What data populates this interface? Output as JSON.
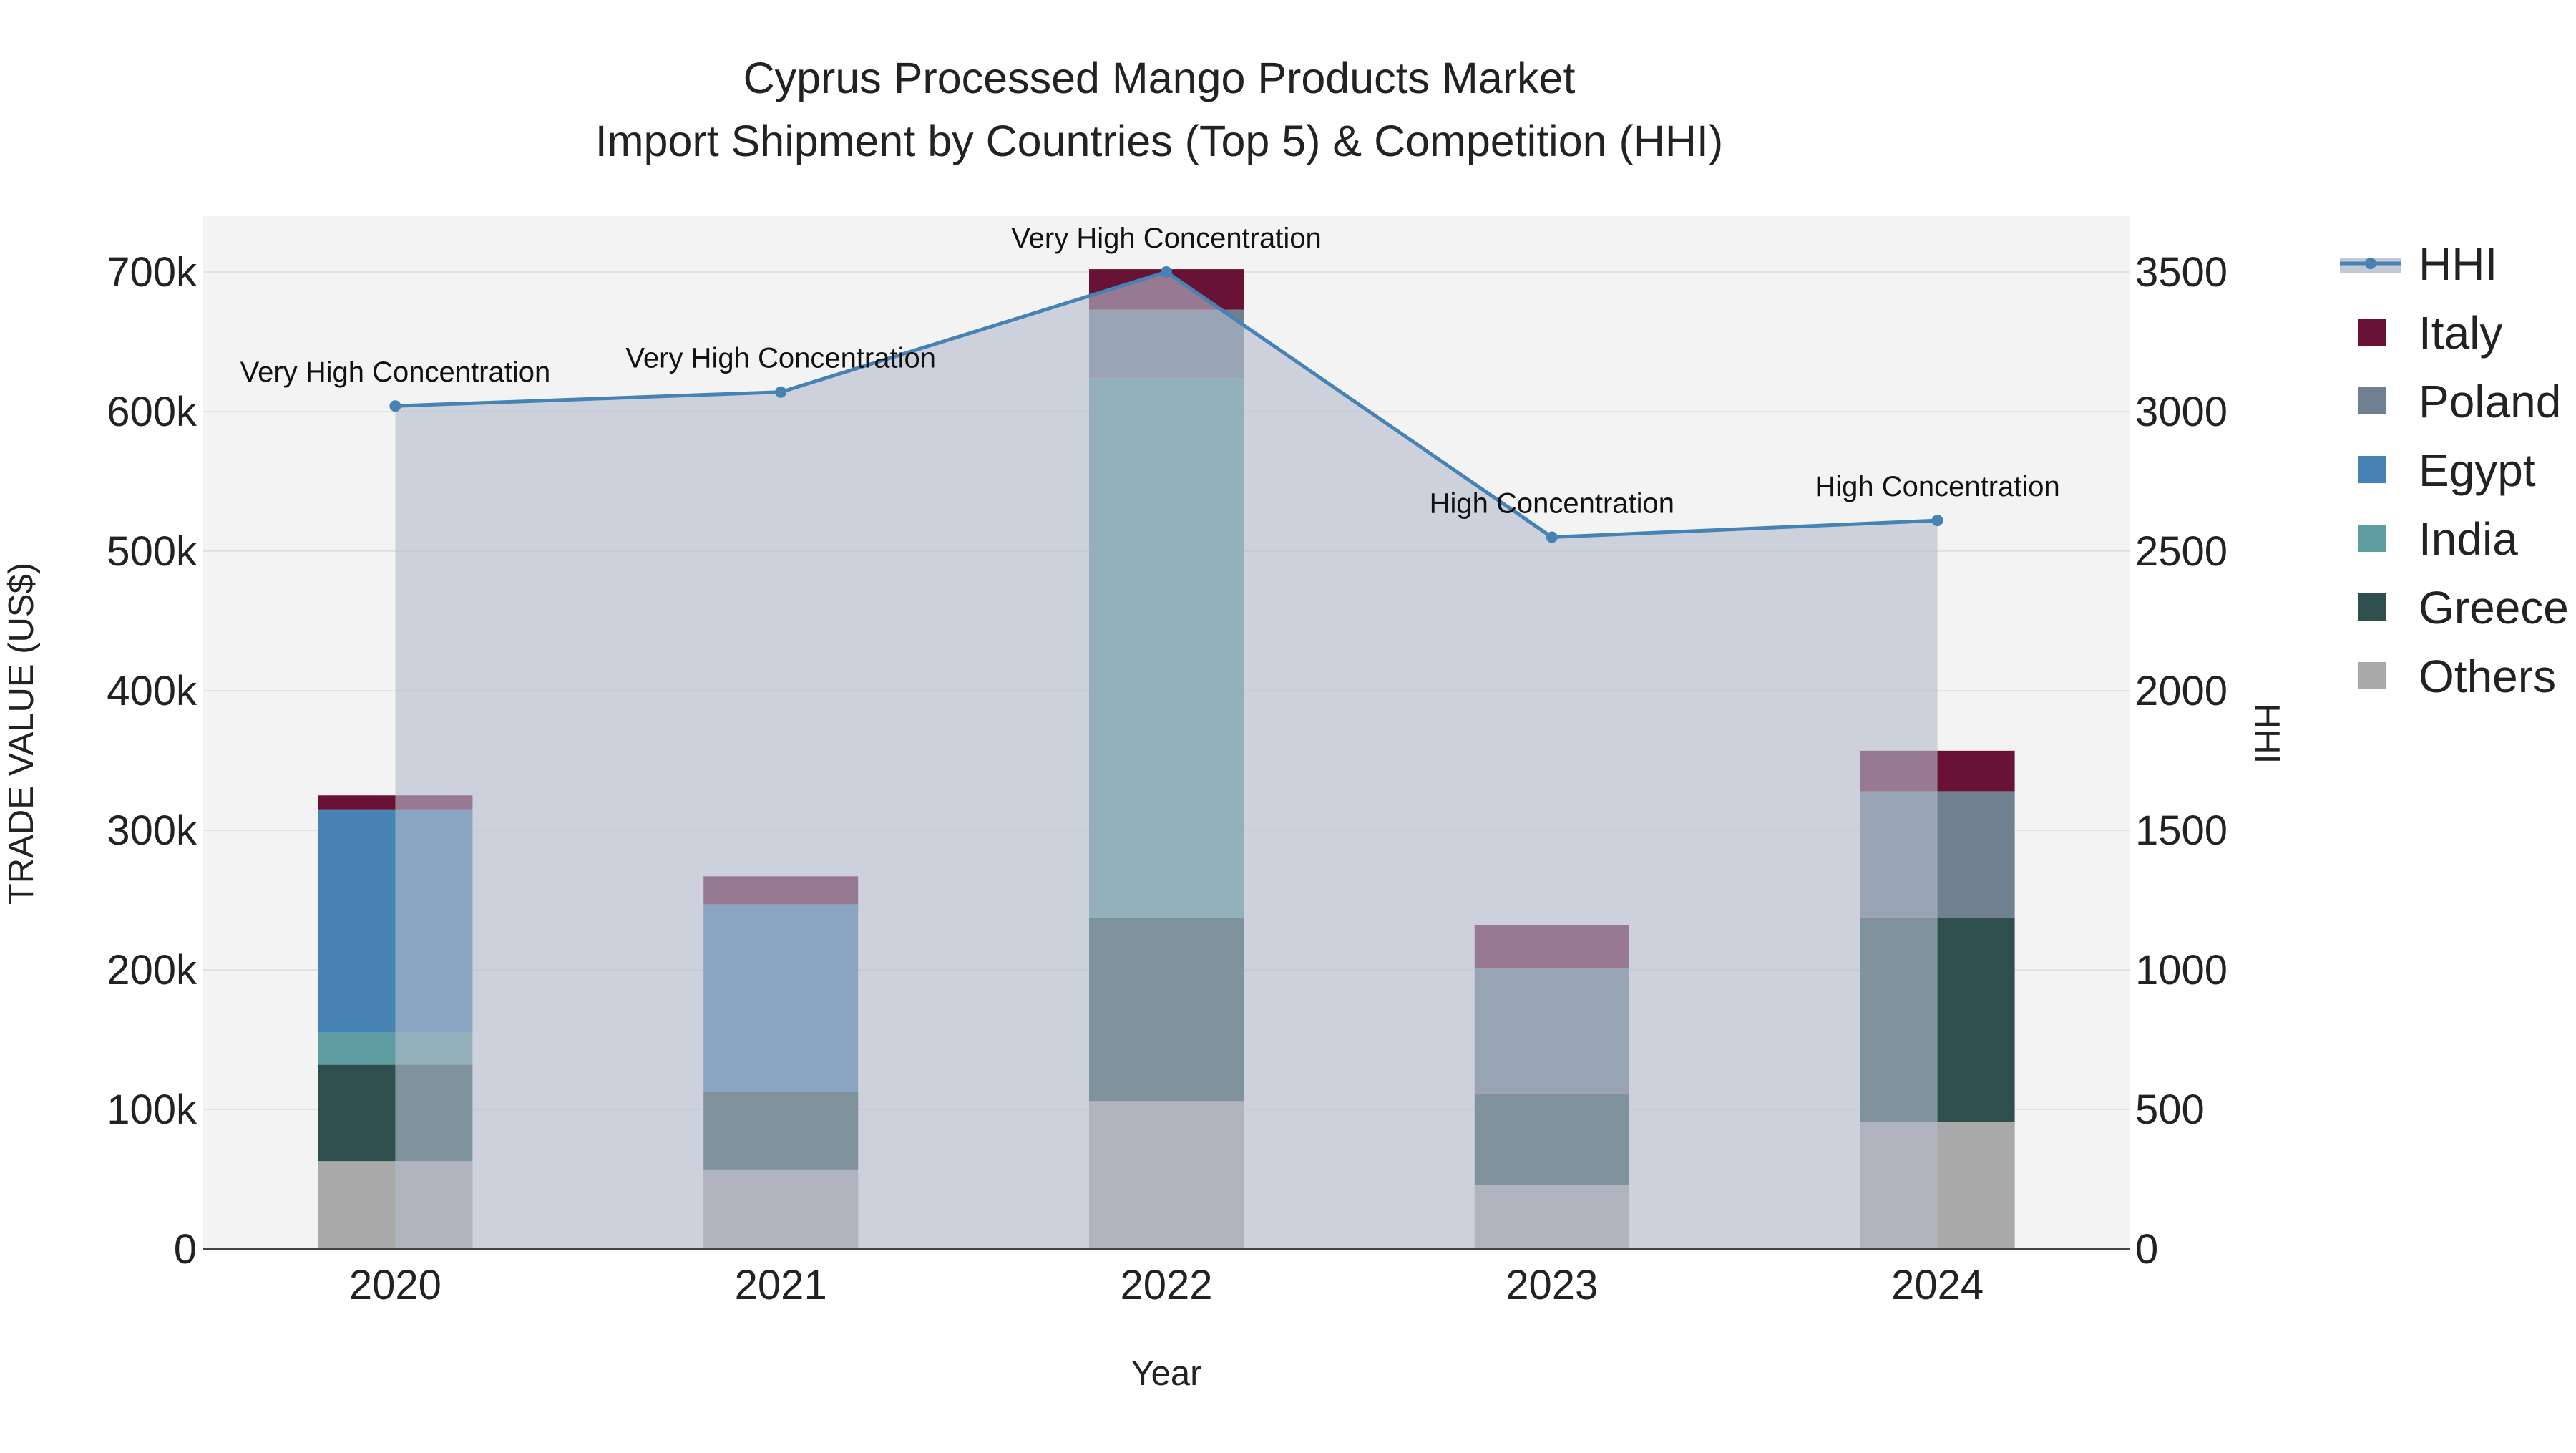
{
  "chart_data": {
    "type": "bar",
    "title_line1": "Cyprus Processed Mango Products Market",
    "title_line2": "Import Shipment by Countries (Top 5) & Competition (HHI)",
    "xlabel": "Year",
    "ylabel": "TRADE VALUE (US$)",
    "y2label": "HHI",
    "categories": [
      "2020",
      "2021",
      "2022",
      "2023",
      "2024"
    ],
    "ylim": [
      0,
      740000
    ],
    "y2lim": [
      0,
      3700
    ],
    "y_ticks": [
      0,
      100000,
      200000,
      300000,
      400000,
      500000,
      600000,
      700000
    ],
    "y_tick_labels": [
      "0",
      "100k",
      "200k",
      "300k",
      "400k",
      "500k",
      "600k",
      "700k"
    ],
    "y2_ticks": [
      0,
      500,
      1000,
      1500,
      2000,
      2500,
      3000,
      3500
    ],
    "y2_tick_labels": [
      "0",
      "500",
      "1000",
      "1500",
      "2000",
      "2500",
      "3000",
      "3500"
    ],
    "series": [
      {
        "name": "Others",
        "color": "#a9a9a9",
        "values": [
          63000,
          57000,
          106000,
          46000,
          91000
        ]
      },
      {
        "name": "Greece",
        "color": "#2f4f4f",
        "values": [
          69000,
          56000,
          131000,
          65000,
          146000
        ]
      },
      {
        "name": "India",
        "color": "#5f9ea0",
        "values": [
          23000,
          0,
          387000,
          0,
          0
        ]
      },
      {
        "name": "Egypt",
        "color": "#4682b4",
        "values": [
          160000,
          134000,
          0,
          0,
          0
        ]
      },
      {
        "name": "Poland",
        "color": "#708090",
        "values": [
          0,
          0,
          49000,
          90000,
          91000
        ]
      },
      {
        "name": "Italy",
        "color": "#6a1136",
        "values": [
          10000,
          20000,
          29000,
          31000,
          29000
        ]
      }
    ],
    "hhi": {
      "name": "HHI",
      "color": "#4682b4",
      "values": [
        3020,
        3070,
        3500,
        2550,
        2610
      ],
      "labels": [
        "Very High Concentration",
        "Very High Concentration",
        "Very High Concentration",
        "High Concentration",
        "High Concentration"
      ]
    },
    "legend_order": [
      "HHI",
      "Italy",
      "Poland",
      "Egypt",
      "India",
      "Greece",
      "Others"
    ],
    "legend_position": "right"
  }
}
